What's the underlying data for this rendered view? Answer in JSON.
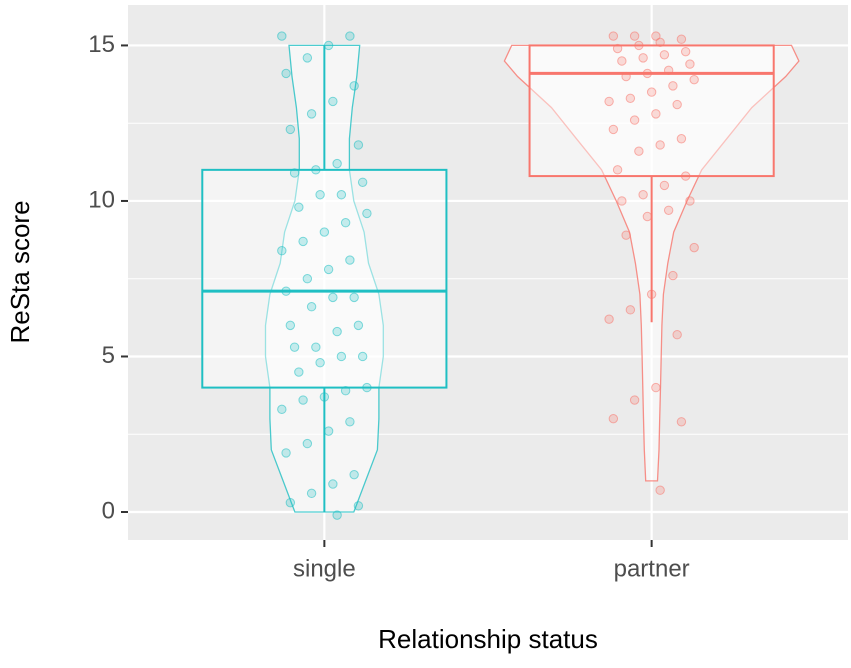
{
  "chart_data": {
    "type": "violin-box",
    "x_label": "Relationship status",
    "y_label": "ReSta score",
    "categories": [
      "single",
      "partner"
    ],
    "ylim": [
      -0.9,
      16.3
    ],
    "yticks": [
      0,
      5,
      10,
      15
    ],
    "minor_yticks": [
      2.5,
      7.5,
      12.5
    ],
    "grid": true,
    "series": [
      {
        "name": "single",
        "color": "#1fbfc3",
        "whisker_low": 0,
        "q1": 4,
        "median": 7.1,
        "q3": 11,
        "whisker_high": 15,
        "density_y": [
          0,
          1,
          2,
          3,
          4,
          5,
          6,
          7,
          8,
          9,
          10,
          11,
          12,
          13,
          14,
          15
        ],
        "density": [
          0.2,
          0.28,
          0.36,
          0.37,
          0.37,
          0.4,
          0.4,
          0.37,
          0.3,
          0.27,
          0.2,
          0.17,
          0.17,
          0.19,
          0.22,
          0.24
        ],
        "points": [
          15.3,
          15.3,
          15.0,
          14.6,
          14.1,
          13.7,
          13.2,
          12.8,
          12.3,
          11.8,
          11.2,
          11.0,
          10.9,
          10.6,
          10.2,
          10.2,
          9.8,
          9.6,
          9.3,
          9.0,
          8.7,
          8.4,
          8.1,
          7.8,
          7.5,
          7.1,
          6.9,
          6.9,
          6.6,
          6.0,
          6.0,
          5.8,
          5.3,
          5.3,
          5.0,
          5.0,
          4.8,
          4.5,
          4.0,
          3.9,
          3.7,
          3.6,
          3.3,
          2.9,
          2.6,
          2.2,
          1.9,
          1.2,
          0.9,
          0.6,
          0.3,
          0.2,
          -0.1
        ]
      },
      {
        "name": "partner",
        "color": "#f8766d",
        "whisker_low": 6.1,
        "q1": 10.8,
        "median": 14.1,
        "q3": 15,
        "whisker_high": 15,
        "density_y": [
          1,
          2,
          3,
          4,
          5,
          6,
          7,
          8,
          9,
          10,
          11,
          12,
          13,
          14,
          14.5,
          15
        ],
        "density": [
          0.04,
          0.05,
          0.055,
          0.06,
          0.065,
          0.07,
          0.08,
          0.11,
          0.15,
          0.24,
          0.34,
          0.51,
          0.68,
          0.91,
          1.0,
          0.95
        ],
        "points": [
          15.3,
          15.3,
          15.3,
          15.2,
          15.1,
          15.0,
          14.9,
          14.8,
          14.7,
          14.6,
          14.5,
          14.4,
          14.2,
          14.1,
          14.0,
          13.9,
          13.7,
          13.5,
          13.3,
          13.2,
          13.1,
          12.8,
          12.6,
          12.3,
          12.0,
          11.8,
          11.6,
          11.0,
          10.8,
          10.5,
          10.2,
          10.0,
          10.0,
          9.7,
          9.5,
          8.9,
          8.5,
          7.6,
          7.0,
          6.5,
          6.2,
          5.7,
          4.0,
          3.6,
          3.0,
          2.9,
          0.7
        ]
      }
    ]
  }
}
